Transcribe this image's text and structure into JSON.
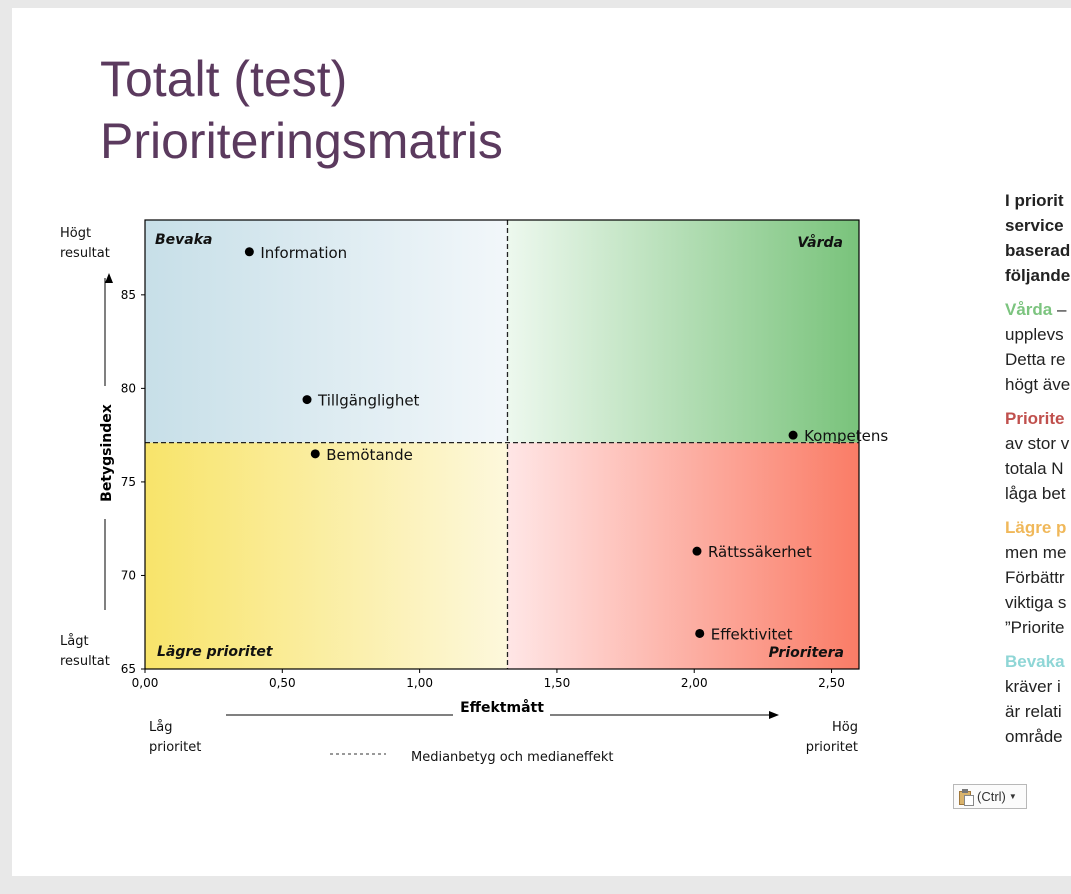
{
  "slide": {
    "title_line1": "Totalt (test)",
    "title_line2": "Prioriteringsmatris"
  },
  "colors": {
    "title": "#5b3a5e",
    "vårda": "#7cc47f",
    "prioritera": "#c0504d",
    "lägre": "#f0b85a",
    "bevaka": "#8fd6d6"
  },
  "chart_data": {
    "type": "scatter",
    "xlabel": "Effektmått",
    "ylabel": "Betygsindex",
    "xlim": [
      0,
      2.6
    ],
    "ylim": [
      65,
      89
    ],
    "xticks": [
      "0,00",
      "0,50",
      "1,00",
      "1,50",
      "2,00",
      "2,50"
    ],
    "yticks": [
      "65",
      "70",
      "75",
      "80",
      "85"
    ],
    "median_x": 1.32,
    "median_y": 77.1,
    "points": [
      {
        "label": "Information",
        "x": 0.38,
        "y": 87.3
      },
      {
        "label": "Tillgänglighet",
        "x": 0.59,
        "y": 79.4
      },
      {
        "label": "Bemötande",
        "x": 0.62,
        "y": 76.5
      },
      {
        "label": "Kompetens",
        "x": 2.36,
        "y": 77.5
      },
      {
        "label": "Rättssäkerhet",
        "x": 2.01,
        "y": 71.3
      },
      {
        "label": "Effektivitet",
        "x": 2.02,
        "y": 66.9
      }
    ],
    "quadrants": {
      "top_left": "Bevaka",
      "top_right": "Vårda",
      "bottom_left": "Lägre prioritet",
      "bottom_right": "Prioritera"
    },
    "y_high": [
      "Högt",
      "resultat"
    ],
    "y_low": [
      "Lågt",
      "resultat"
    ],
    "x_low": [
      "Låg",
      "prioritet"
    ],
    "x_high": [
      "Hög",
      "prioritet"
    ],
    "legend": "Medianbetyg och medianeffekt"
  },
  "right_text": {
    "intro": [
      "I priorit",
      "service",
      "baserad",
      "följande"
    ],
    "vårda": {
      "head": "Vårda",
      "rest": " –",
      "lines": [
        "upplevs",
        "Detta re",
        "högt äve"
      ]
    },
    "prioritera": {
      "head": "Priorite",
      "lines": [
        "av stor v",
        "totala N",
        "låga bet"
      ]
    },
    "lägre": {
      "head": "Lägre p",
      "lines": [
        "men me",
        "Förbättr",
        "viktiga s",
        "”Priorite"
      ]
    },
    "bevaka": {
      "head": "Bevaka",
      "lines": [
        "kräver i",
        "är relati",
        "område"
      ]
    }
  },
  "paste_button": {
    "label": "(Ctrl)"
  }
}
